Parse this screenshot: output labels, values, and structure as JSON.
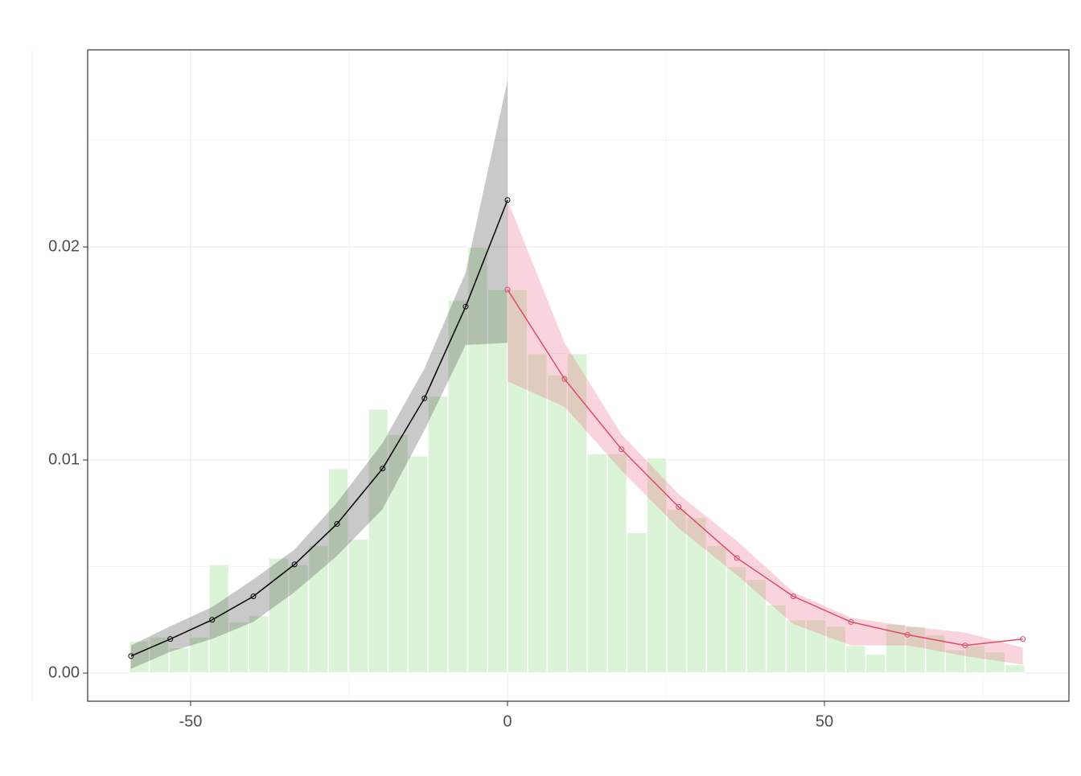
{
  "chart_data": {
    "type": "histogram",
    "bins": [
      -59.66,
      -56.52,
      -53.38,
      -50.24,
      -47.1,
      -43.96,
      -40.82,
      -37.68,
      -34.54,
      -31.4,
      -28.26,
      -25.12,
      -21.98,
      -18.84,
      -15.7,
      -12.56,
      -9.42,
      -6.28,
      -3.14,
      0,
      3.14,
      6.28,
      9.42,
      12.56,
      15.7,
      18.84,
      21.98,
      25.12,
      28.26,
      31.4,
      34.54,
      37.68,
      40.82,
      43.96,
      47.1,
      50.24,
      53.38,
      56.52,
      59.66,
      62.8,
      65.94,
      69.08,
      72.22,
      75.36,
      78.5,
      81.64
    ],
    "values": [
      0.0015,
      0.0017,
      0.0012,
      0.0017,
      0.0051,
      0.0024,
      0.0027,
      0.0054,
      0.0051,
      0.006,
      0.0096,
      0.0063,
      0.0124,
      0.0112,
      0.0102,
      0.013,
      0.0175,
      0.02,
      0.018,
      0.018,
      0.015,
      0.014,
      0.015,
      0.0103,
      0.0103,
      0.0066,
      0.0101,
      0.0077,
      0.0073,
      0.006,
      0.005,
      0.0044,
      0.0032,
      0.0025,
      0.0025,
      0.0022,
      0.0013,
      0.0009,
      0.0023,
      0.0022,
      0.0018,
      0.0011,
      0.0013,
      0.001,
      0.0004
    ],
    "color": "#dbf3d6",
    "series": [
      {
        "color": "#000000",
        "band_color": "#4d4d4d",
        "x": [
          -59.4,
          -53.2,
          -46.6,
          -40.1,
          -33.6,
          -26.9,
          -19.7,
          -13.1,
          -6.6,
          0
        ],
        "values": [
          0.0008,
          0.0016,
          0.0025,
          0.0036,
          0.0051,
          0.007,
          0.0096,
          0.0129,
          0.0172,
          0.0222
        ],
        "lower": [
          0.0002,
          0.001,
          0.0016,
          0.0024,
          0.0038,
          0.0055,
          0.0077,
          0.0114,
          0.0154,
          0.0155
        ],
        "upper": [
          0.0013,
          0.0022,
          0.0031,
          0.0044,
          0.0058,
          0.008,
          0.0108,
          0.0143,
          0.0188,
          0.0278
        ]
      },
      {
        "color": "#df4a68",
        "band_color": "#ec6f8a",
        "x": [
          0,
          9,
          18,
          27,
          36.2,
          45.1,
          54.2,
          63.1,
          72.2,
          81.3
        ],
        "values": [
          0.018,
          0.0138,
          0.0105,
          0.0078,
          0.0054,
          0.0036,
          0.0024,
          0.0018,
          0.0013,
          0.0016
        ],
        "lower": [
          0.0137,
          0.0125,
          0.0095,
          0.0068,
          0.0046,
          0.0023,
          0.0013,
          0.0013,
          0.0008,
          0.0004
        ],
        "upper": [
          0.0222,
          0.0155,
          0.0112,
          0.0084,
          0.0062,
          0.0038,
          0.0026,
          0.0022,
          0.0019,
          0.0012
        ]
      }
    ],
    "xlim": [
      -66.24,
      88.58
    ],
    "ylim": [
      -0.00132,
      0.02925
    ],
    "xticks": [
      -50,
      0,
      50
    ],
    "yticks": [
      {
        "value": 0,
        "label": "0.00"
      },
      0.01,
      0.02
    ],
    "x_minor_ticks": [
      -75,
      -25,
      25,
      75
    ],
    "y_minor_ticks": [
      0.005,
      0.015,
      0.025
    ],
    "grid": true
  }
}
